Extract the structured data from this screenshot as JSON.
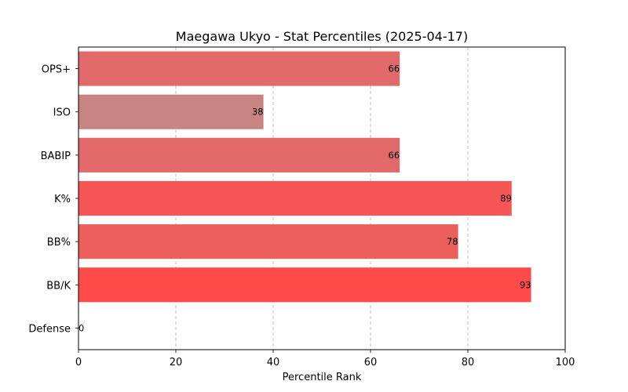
{
  "chart_data": {
    "type": "bar",
    "orientation": "horizontal",
    "title": "Maegawa Ukyo - Stat Percentiles (2025-04-17)",
    "xlabel": "Percentile Rank",
    "ylabel": "",
    "xlim": [
      0,
      100
    ],
    "xticks": [
      0,
      20,
      40,
      60,
      80,
      100
    ],
    "grid": "x-dashed",
    "categories": [
      "OPS+",
      "ISO",
      "BABIP",
      "K%",
      "BB%",
      "BB/K",
      "Defense"
    ],
    "values": [
      66,
      38,
      66,
      89,
      78,
      93,
      0
    ],
    "colors": [
      "#e36a6a",
      "#c88481",
      "#e36a6a",
      "#f75656",
      "#ec5f5d",
      "#ff4a4a",
      "#a0a0a0"
    ]
  }
}
